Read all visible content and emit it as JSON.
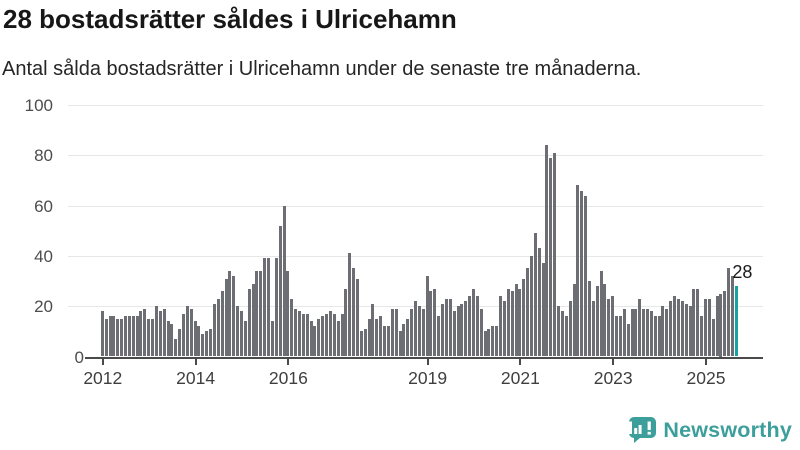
{
  "header": {
    "title": "28 bostadsrätter såldes i Ulricehamn",
    "subtitle": "Antal sålda bostadsrätter i Ulricehamn under de senaste tre månaderna."
  },
  "chart_data": {
    "type": "bar",
    "title": "28 bostadsrätter såldes i Ulricehamn",
    "subtitle": "Antal sålda bostadsrätter i Ulricehamn under de senaste tre månaderna.",
    "x_start": {
      "year": 2012,
      "month": 1
    },
    "x_end": {
      "year": 2025,
      "month": 9
    },
    "values": [
      18,
      15,
      16,
      16,
      15,
      15,
      16,
      16,
      16,
      16,
      18,
      19,
      15,
      15,
      20,
      18,
      19,
      14,
      13,
      7,
      11,
      17,
      20,
      19,
      14,
      12,
      9,
      10,
      11,
      21,
      23,
      26,
      31,
      34,
      32,
      20,
      18,
      14,
      27,
      29,
      34,
      34,
      39,
      39,
      14,
      39,
      52,
      60,
      34,
      23,
      19,
      18,
      17,
      17,
      14,
      12,
      15,
      16,
      17,
      18,
      17,
      14,
      17,
      27,
      41,
      35,
      31,
      10,
      11,
      15,
      21,
      15,
      16,
      12,
      12,
      19,
      19,
      10,
      13,
      15,
      19,
      22,
      20,
      19,
      32,
      26,
      27,
      16,
      21,
      23,
      23,
      18,
      20,
      21,
      22,
      24,
      27,
      24,
      19,
      10,
      11,
      12,
      12,
      24,
      22,
      27,
      26,
      29,
      27,
      31,
      35,
      40,
      49,
      43,
      37,
      84,
      79,
      81,
      20,
      18,
      16,
      22,
      29,
      68,
      66,
      64,
      30,
      22,
      28,
      34,
      29,
      23,
      24,
      16,
      16,
      19,
      13,
      19,
      19,
      23,
      19,
      19,
      18,
      16,
      16,
      20,
      19,
      22,
      24,
      23,
      22,
      21,
      20,
      27,
      27,
      16,
      23,
      23,
      15,
      24,
      25,
      26,
      35,
      32,
      28
    ],
    "ylim": [
      0,
      100
    ],
    "y_ticks": [
      0,
      20,
      40,
      60,
      80,
      100
    ],
    "x_tick_years": [
      2012,
      2014,
      2016,
      2019,
      2021,
      2023,
      2025
    ],
    "grid": true,
    "legend": "none",
    "bar_color": "#6d6d74",
    "highlight_index": 164,
    "highlight_color": "#16a2a0",
    "annotation": {
      "text": "28",
      "value": 28
    }
  },
  "footer": {
    "logo_text": "Newsworthy",
    "logo_color": "#3d9f9b"
  }
}
